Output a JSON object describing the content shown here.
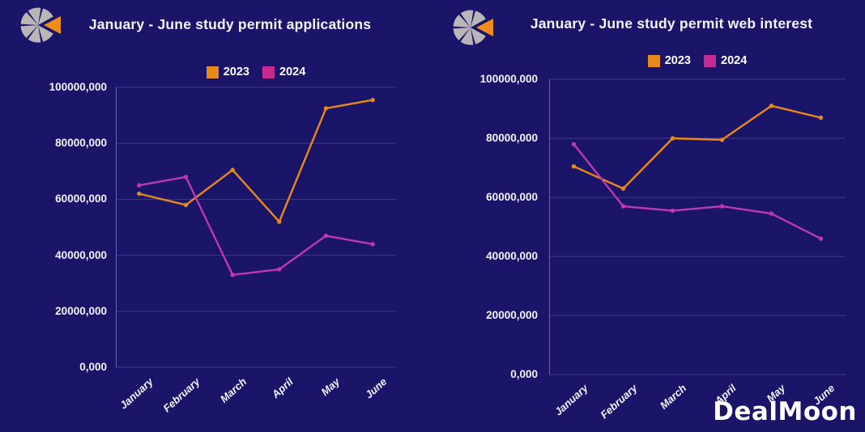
{
  "watermark": {
    "text": "DealMoon"
  },
  "colors": {
    "background": "#1a1569",
    "text": "#f4f3fa",
    "grid": "#474090",
    "logo_gray": "#bab5b7",
    "logo_orange": "#ee8d1a",
    "accent_2023": "#e8891c",
    "accent_2024": "#c52a8e"
  },
  "chart_data": [
    {
      "type": "line",
      "title": "January - June study permit applications",
      "categories": [
        "January",
        "February",
        "March",
        "April",
        "May",
        "June"
      ],
      "series": [
        {
          "name": "2023",
          "color": "#e8891c",
          "legend_color": "#e8891c",
          "values": [
            62000000,
            58000000,
            70500000,
            52000000,
            92500000,
            95500000
          ]
        },
        {
          "name": "2024",
          "color": "#bd37b6",
          "legend_color": "#c52a8e",
          "values": [
            65000000,
            68000000,
            33000000,
            35000000,
            47000000,
            44000000
          ]
        }
      ],
      "ylim": [
        0,
        100000000
      ],
      "ytick_labels": [
        "100000,000",
        "80000,000",
        "60000,000",
        "40000,000",
        "20000,000",
        "0,000"
      ],
      "xlabel": "",
      "ylabel": "",
      "legend_position": "top",
      "grid": true
    },
    {
      "type": "line",
      "title": "January - June study permit web interest",
      "categories": [
        "January",
        "February",
        "March",
        "April",
        "May",
        "June"
      ],
      "series": [
        {
          "name": "2023",
          "color": "#e8891c",
          "legend_color": "#e8891c",
          "values": [
            70500000,
            63000000,
            80000000,
            79500000,
            91000000,
            87000000
          ]
        },
        {
          "name": "2024",
          "color": "#bd37b6",
          "legend_color": "#c52a8e",
          "values": [
            78000000,
            57000000,
            55500000,
            57000000,
            54500000,
            46000000
          ]
        }
      ],
      "ylim": [
        0,
        100000000
      ],
      "ytick_labels": [
        "100000,000",
        "80000,000",
        "60000,000",
        "40000,000",
        "20000,000",
        "0,000"
      ],
      "xlabel": "",
      "ylabel": "",
      "legend_position": "top",
      "grid": true
    }
  ]
}
